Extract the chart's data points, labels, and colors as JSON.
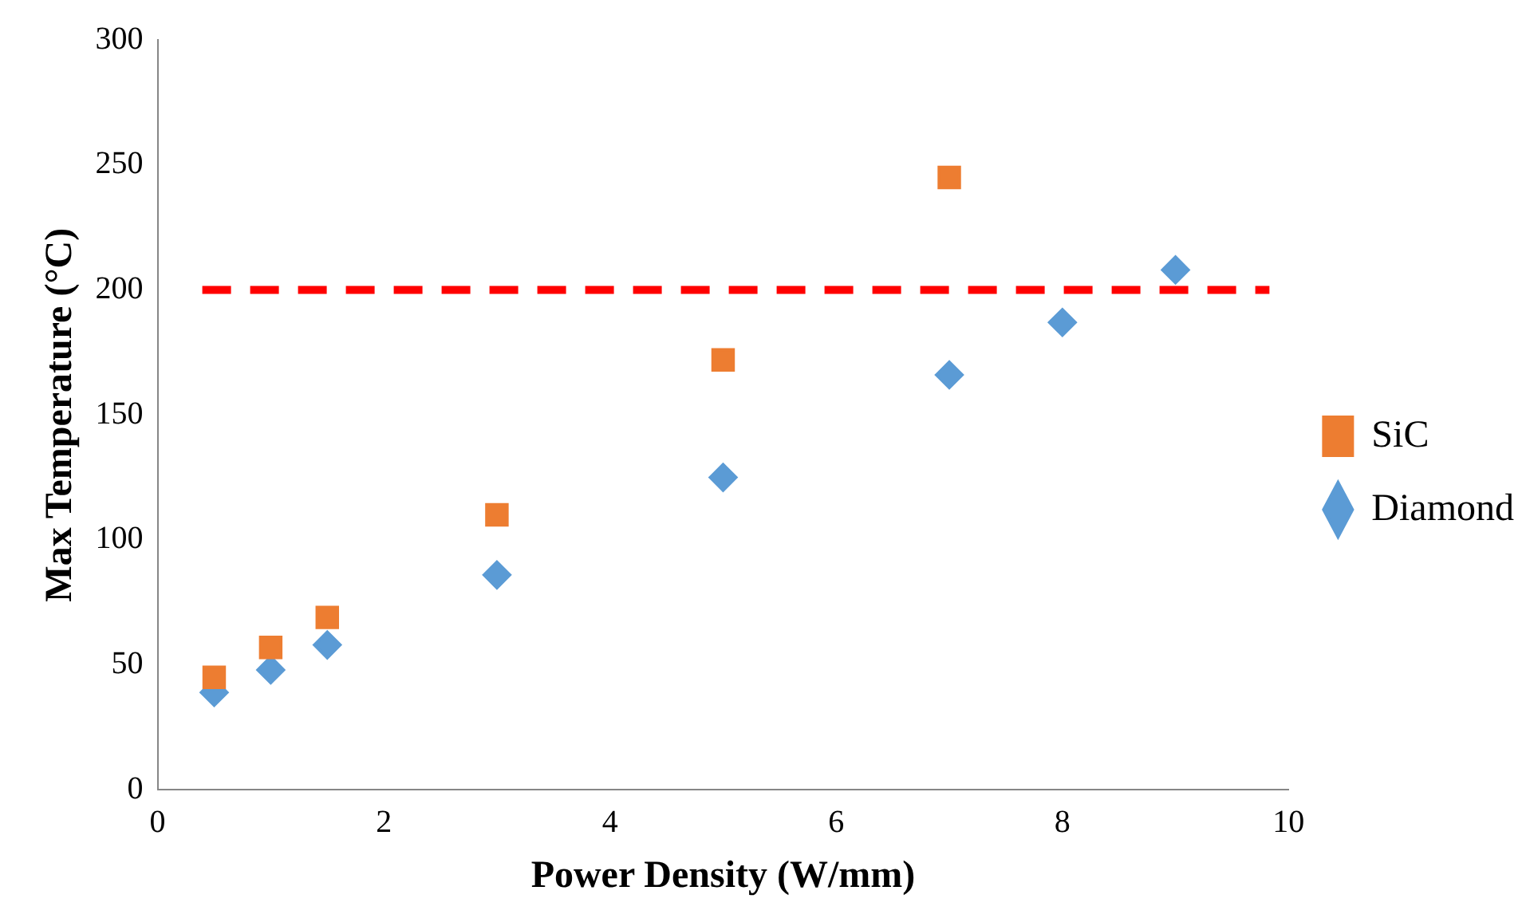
{
  "chart_data": {
    "type": "scatter",
    "xlabel": "Power Density (W/mm)",
    "ylabel": "Max Temperature (°C)",
    "xlim": [
      0,
      10
    ],
    "xticks": [
      0,
      2,
      4,
      6,
      8,
      10
    ],
    "ylim": [
      0,
      300
    ],
    "yticks": [
      0,
      50,
      100,
      150,
      200,
      250,
      300
    ],
    "grid": false,
    "legend": "right",
    "series": [
      {
        "name": "SiC",
        "color": "#ed7d31",
        "marker": "square",
        "x": [
          0.5,
          1,
          1.5,
          3,
          5,
          7
        ],
        "values": [
          45,
          57,
          69,
          110,
          172,
          245
        ]
      },
      {
        "name": "Diamond",
        "color": "#5b9bd5",
        "marker": "diamond",
        "x": [
          0.5,
          1,
          1.5,
          3,
          5,
          7,
          8,
          9
        ],
        "values": [
          39,
          48,
          58,
          86,
          125,
          166,
          187,
          208
        ]
      }
    ],
    "ref_lines": [
      {
        "axis": "y",
        "value": 200,
        "color": "#ff0000",
        "line_style": "dashed"
      }
    ]
  }
}
